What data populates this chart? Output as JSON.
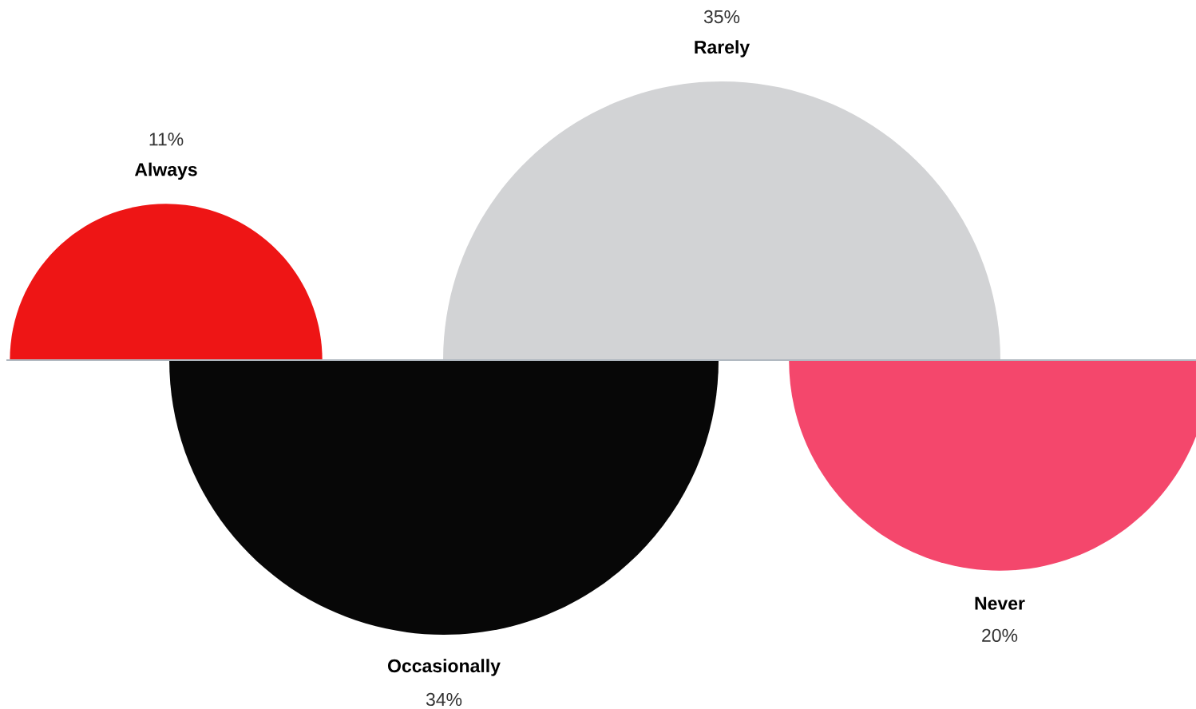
{
  "chart_data": {
    "type": "other",
    "categories": [
      "Always",
      "Occasionally",
      "Rarely",
      "Never"
    ],
    "values": [
      11,
      34,
      35,
      20
    ],
    "value_labels": [
      "11%",
      "34%",
      "35%",
      "20%"
    ],
    "colors": [
      "#ee1515",
      "#070707",
      "#d2d3d5",
      "#f4476c"
    ]
  }
}
